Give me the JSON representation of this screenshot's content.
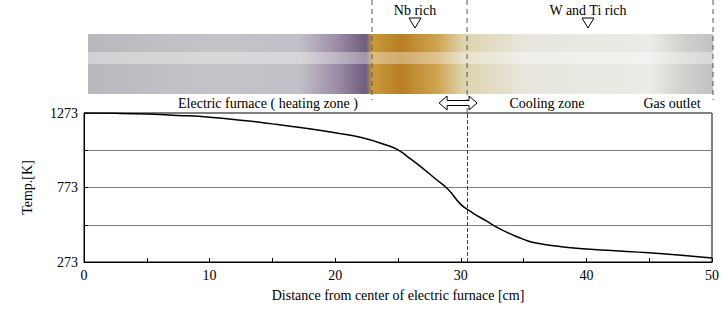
{
  "chart_data": {
    "type": "line",
    "xlabel": "Distance from center of electric furnace [cm]",
    "ylabel": "Temp.[K]",
    "x": [
      0,
      2.5,
      5,
      7.5,
      10,
      12.5,
      15,
      17.5,
      20,
      22,
      24,
      25,
      26,
      27,
      28,
      29,
      30,
      31,
      32,
      33,
      34,
      35,
      36,
      38,
      40,
      42,
      45,
      48,
      50
    ],
    "values": [
      1273,
      1271,
      1266,
      1257,
      1245,
      1225,
      1200,
      1172,
      1140,
      1110,
      1060,
      1025,
      965,
      900,
      830,
      760,
      660,
      600,
      550,
      500,
      460,
      425,
      400,
      375,
      360,
      350,
      335,
      315,
      300
    ],
    "color": "#000000",
    "xlim": [
      0,
      50
    ],
    "xticks": [
      0,
      10,
      20,
      30,
      40,
      50
    ],
    "ylim": [
      273,
      1273
    ],
    "yticks": [
      273,
      773,
      1273
    ],
    "grid": true,
    "boundary": 30.5,
    "annotations": [
      "Nb rich",
      "W and Ti rich",
      "Electric furnace ( heating zone )",
      "Cooling zone",
      "Gas outlet"
    ]
  }
}
